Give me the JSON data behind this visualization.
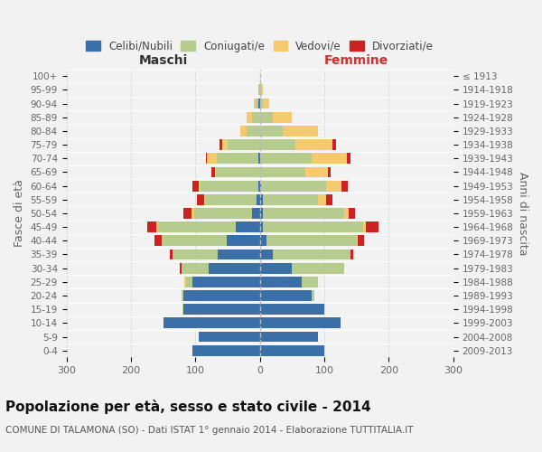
{
  "age_groups": [
    "100+",
    "95-99",
    "90-94",
    "85-89",
    "80-84",
    "75-79",
    "70-74",
    "65-69",
    "60-64",
    "55-59",
    "50-54",
    "45-49",
    "40-44",
    "35-39",
    "30-34",
    "25-29",
    "20-24",
    "15-19",
    "10-14",
    "5-9",
    "0-4"
  ],
  "birth_years": [
    "≤ 1913",
    "1914-1918",
    "1919-1923",
    "1924-1928",
    "1929-1933",
    "1934-1938",
    "1939-1943",
    "1944-1948",
    "1949-1953",
    "1954-1958",
    "1959-1963",
    "1964-1968",
    "1969-1973",
    "1974-1978",
    "1979-1983",
    "1984-1988",
    "1989-1993",
    "1994-1998",
    "1999-2003",
    "2004-2008",
    "2009-2013"
  ],
  "male": {
    "celibi": [
      0,
      0,
      2,
      0,
      0,
      0,
      2,
      0,
      2,
      5,
      12,
      38,
      52,
      65,
      80,
      105,
      118,
      118,
      150,
      95,
      105
    ],
    "coniugati": [
      0,
      2,
      5,
      12,
      20,
      50,
      65,
      68,
      90,
      80,
      90,
      120,
      100,
      70,
      42,
      10,
      4,
      2,
      0,
      0,
      0
    ],
    "vedovi": [
      0,
      0,
      2,
      8,
      10,
      8,
      15,
      2,
      3,
      2,
      4,
      2,
      0,
      0,
      0,
      2,
      0,
      0,
      0,
      0,
      0
    ],
    "divorziati": [
      0,
      0,
      0,
      0,
      0,
      5,
      2,
      5,
      10,
      10,
      12,
      15,
      12,
      5,
      2,
      0,
      0,
      0,
      0,
      0,
      0
    ]
  },
  "female": {
    "nubili": [
      0,
      0,
      0,
      0,
      0,
      0,
      0,
      0,
      2,
      5,
      5,
      5,
      10,
      20,
      50,
      65,
      80,
      100,
      125,
      90,
      100
    ],
    "coniugate": [
      0,
      2,
      5,
      20,
      35,
      55,
      80,
      70,
      100,
      85,
      125,
      155,
      140,
      120,
      80,
      25,
      5,
      0,
      0,
      0,
      0
    ],
    "vedove": [
      0,
      3,
      10,
      30,
      55,
      58,
      55,
      35,
      25,
      12,
      8,
      4,
      2,
      0,
      0,
      0,
      0,
      0,
      0,
      0,
      0
    ],
    "divorziate": [
      0,
      0,
      0,
      0,
      0,
      5,
      5,
      5,
      10,
      10,
      10,
      20,
      10,
      5,
      0,
      0,
      0,
      0,
      0,
      0,
      0
    ]
  },
  "colors": {
    "celibi": "#3a6fa8",
    "coniugati": "#b5cc8e",
    "vedovi": "#f5c96e",
    "divorziati": "#cc2222"
  },
  "xlim": 300,
  "title": "Popolazione per età, sesso e stato civile - 2014",
  "subtitle": "COMUNE DI TALAMONA (SO) - Dati ISTAT 1° gennaio 2014 - Elaborazione TUTTITALIA.IT",
  "ylabel_left": "Fasce di età",
  "ylabel_right": "Anni di nascita",
  "xlabel_left": "Maschi",
  "xlabel_right": "Femmine",
  "legend_labels": [
    "Celibi/Nubili",
    "Coniugati/e",
    "Vedovi/e",
    "Divorziati/e"
  ],
  "bg_color": "#f2f2f2"
}
